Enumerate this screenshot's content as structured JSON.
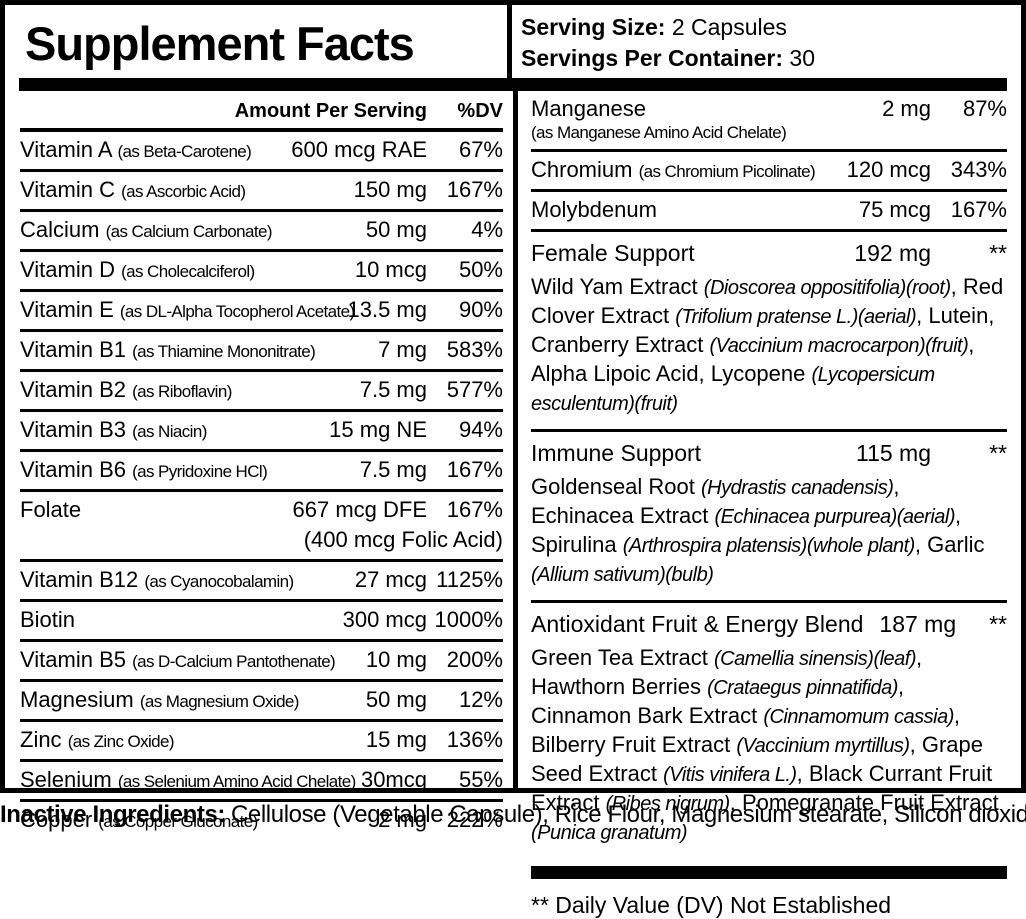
{
  "header": {
    "title": "Supplement Facts",
    "serving_size_label": "Serving Size:",
    "serving_size_value": " 2 Capsules",
    "servings_label": "Servings Per Container:",
    "servings_value": " 30"
  },
  "left_table": {
    "col_amount": "Amount Per Serving",
    "col_dv": "%DV",
    "rows": [
      {
        "name": "Vitamin A",
        "form": "(as Beta-Carotene)",
        "amount": "600 mcg RAE",
        "dv": "67%"
      },
      {
        "name": "Vitamin C",
        "form": "(as Ascorbic Acid)",
        "amount": "150 mg",
        "dv": "167%"
      },
      {
        "name": "Calcium",
        "form": "(as Calcium Carbonate)",
        "amount": "50 mg",
        "dv": "4%"
      },
      {
        "name": "Vitamin D",
        "form": "(as Cholecalciferol)",
        "amount": "10 mcg",
        "dv": "50%"
      },
      {
        "name": "Vitamin E",
        "form": "(as DL-Alpha Tocopherol Acetate)",
        "amount": "13.5 mg",
        "dv": "90%"
      },
      {
        "name": "Vitamin B1",
        "form": "(as Thiamine Mononitrate)",
        "amount": "7 mg",
        "dv": "583%"
      },
      {
        "name": "Vitamin B2",
        "form": "(as Riboflavin)",
        "amount": "7.5 mg",
        "dv": "577%"
      },
      {
        "name": "Vitamin B3",
        "form": "(as Niacin)",
        "amount": "15 mg NE",
        "dv": "94%"
      },
      {
        "name": "Vitamin B6",
        "form": "(as Pyridoxine HCl)",
        "amount": "7.5 mg",
        "dv": "167%"
      },
      {
        "name": "Folate",
        "form": "",
        "amount": "667 mcg DFE",
        "dv": "167%",
        "amount2": "(400 mcg Folic Acid)"
      },
      {
        "name": "Vitamin B12",
        "form": "(as Cyanocobalamin)",
        "amount": "27 mcg",
        "dv": "1125%"
      },
      {
        "name": "Biotin",
        "form": "",
        "amount": "300 mcg",
        "dv": "1000%"
      },
      {
        "name": "Vitamin B5",
        "form": "(as D-Calcium Pantothenate)",
        "amount": "10 mg",
        "dv": "200%"
      },
      {
        "name": "Magnesium",
        "form": "(as Magnesium Oxide)",
        "amount": "50 mg",
        "dv": "12%"
      },
      {
        "name": "Zinc",
        "form": "(as Zinc Oxide)",
        "amount": "15 mg",
        "dv": "136%"
      },
      {
        "name": "Selenium",
        "form": "(as Selenium Amino Acid Chelate)",
        "amount": "30mcg",
        "dv": "55%"
      },
      {
        "name": "Copper",
        "form": "(as Copper Gluconate)",
        "amount": "2 mg",
        "dv": "222%"
      }
    ]
  },
  "right_table": {
    "rows": [
      {
        "name": "Manganese",
        "form": "",
        "form_below": "(as Manganese Amino Acid Chelate)",
        "amount": "2 mg",
        "dv": "87%"
      },
      {
        "name": "Chromium",
        "form": "(as Chromium Picolinate)",
        "amount": "120 mcg",
        "dv": "343%"
      },
      {
        "name": "Molybdenum",
        "form": "",
        "amount": "75 mcg",
        "dv": "167%"
      }
    ],
    "blends": [
      {
        "name": "Female Support",
        "amount": "192 mg",
        "dv": "**",
        "desc": [
          {
            "t": "Wild Yam Extract ",
            "i": false
          },
          {
            "t": "(Dioscorea oppositifolia)(root)",
            "i": true
          },
          {
            "t": ", Red Clover Extract ",
            "i": false
          },
          {
            "t": "(Trifolium pratense L.)(aerial)",
            "i": true
          },
          {
            "t": ", Lutein, Cranberry Extract ",
            "i": false
          },
          {
            "t": "(Vaccinium macrocarpon)(fruit)",
            "i": true
          },
          {
            "t": ", Alpha Lipoic Acid, Lycopene ",
            "i": false
          },
          {
            "t": "(Lycopersicum esculentum)(fruit)",
            "i": true
          }
        ]
      },
      {
        "name": "Immune Support",
        "amount": "115 mg",
        "dv": "**",
        "desc": [
          {
            "t": "Goldenseal Root ",
            "i": false
          },
          {
            "t": "(Hydrastis canadensis)",
            "i": true
          },
          {
            "t": ", Echinacea Extract ",
            "i": false
          },
          {
            "t": "(Echinacea purpurea)(aerial)",
            "i": true
          },
          {
            "t": ", Spirulina ",
            "i": false
          },
          {
            "t": "(Arthrospira platensis)(whole plant)",
            "i": true
          },
          {
            "t": ", Garlic ",
            "i": false
          },
          {
            "t": "(Allium sativum)(bulb)",
            "i": true
          }
        ]
      },
      {
        "name": "Antioxidant Fruit & Energy Blend",
        "amount": "187 mg",
        "dv": "**",
        "amount_inline": true,
        "desc": [
          {
            "t": "Green Tea Extract ",
            "i": false
          },
          {
            "t": "(Camellia sinensis)(leaf)",
            "i": true
          },
          {
            "t": ", Hawthorn Berries ",
            "i": false
          },
          {
            "t": "(Crataegus pinnatifida)",
            "i": true
          },
          {
            "t": ", Cinnamon Bark Extract ",
            "i": false
          },
          {
            "t": "(Cinnamomum cassia)",
            "i": true
          },
          {
            "t": ", Bilberry Fruit Extract ",
            "i": false
          },
          {
            "t": "(Vaccinium myrtillus)",
            "i": true
          },
          {
            "t": ", Grape Seed Extract ",
            "i": false
          },
          {
            "t": "(Vitis vinifera L.)",
            "i": true
          },
          {
            "t": ", Black Currant Fruit Extract ",
            "i": false
          },
          {
            "t": "(Ribes nigrum)",
            "i": true
          },
          {
            "t": ", Pomegranate Fruit Extract ",
            "i": false
          },
          {
            "t": "(Punica granatum)",
            "i": true
          }
        ]
      }
    ]
  },
  "footnote": "** Daily Value (DV) Not Established",
  "inactive": {
    "label": "Inactive Ingredients:",
    "text": "Cellulose (Vegetable Capsule), Rice Flour, Magnesium stearate, Silicon dioxide."
  }
}
